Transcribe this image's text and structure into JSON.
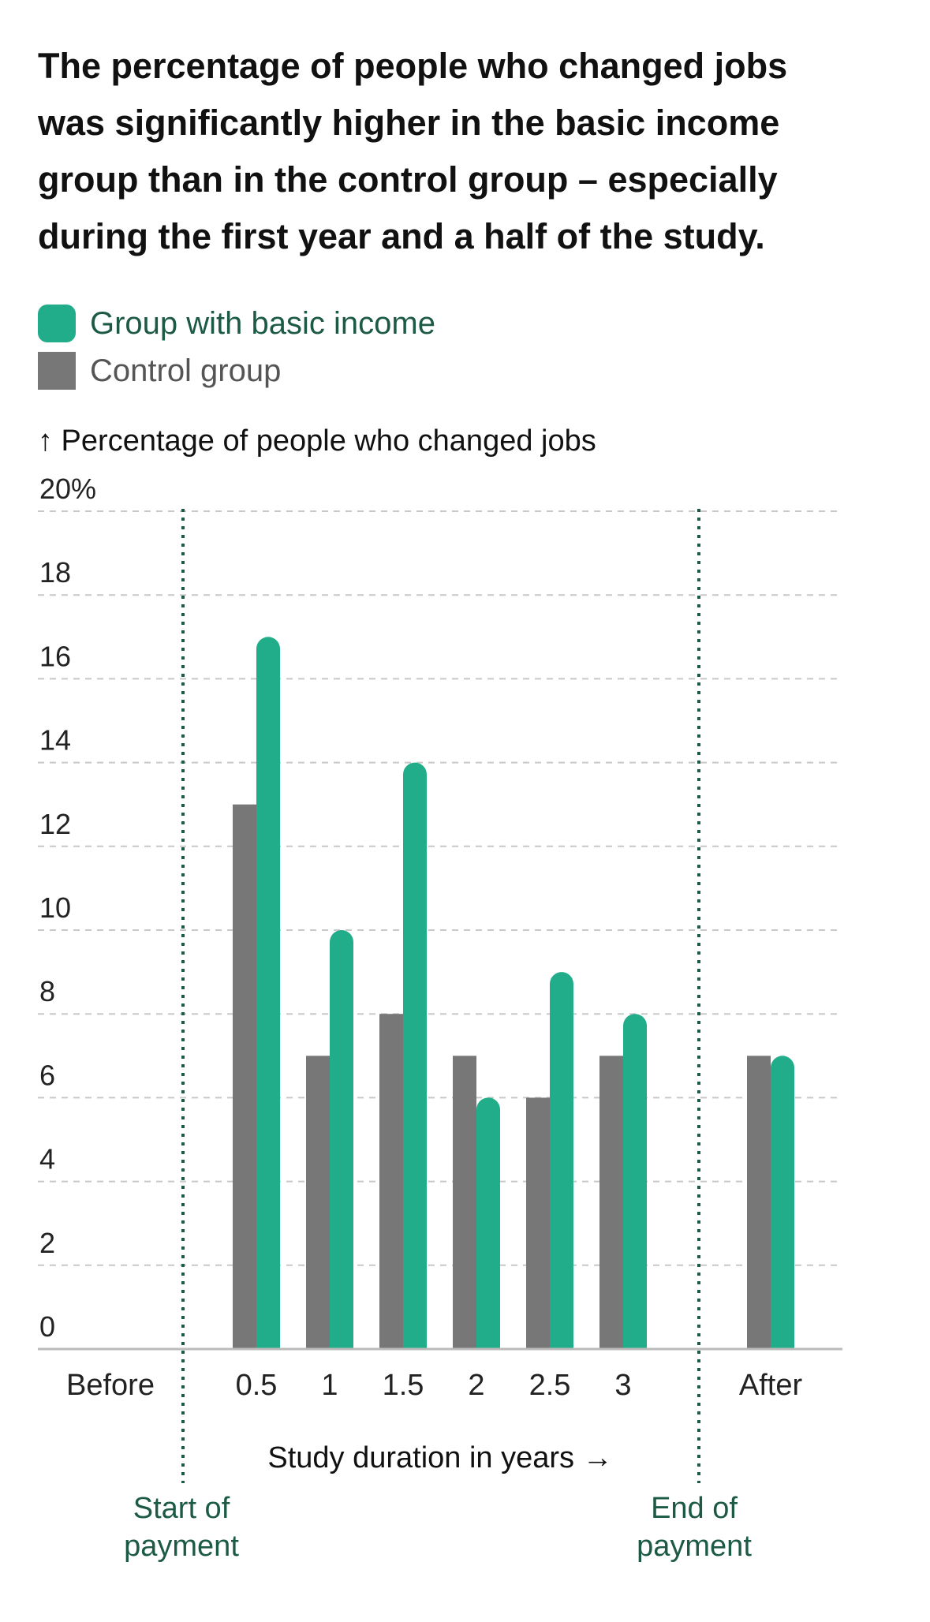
{
  "title": "The percentage of people who changed jobs was significantly higher in the basic income group than in the control group – especially during the first year and a half of the study.",
  "legend": [
    {
      "label": "Group with basic income",
      "color": "#22ad8a"
    },
    {
      "label": "Control group",
      "color": "#777777"
    }
  ],
  "annotations": {
    "start_payment": "Start of payment",
    "end_payment": "End of payment"
  },
  "chart_data": {
    "type": "bar",
    "ylabel": "↑ Percentage of people who changed jobs",
    "xlabel": "Study duration in years →",
    "ylim": [
      0,
      20
    ],
    "y_ticks": [
      "0",
      "2",
      "4",
      "6",
      "8",
      "10",
      "12",
      "14",
      "16",
      "18",
      "20%"
    ],
    "categories": [
      "Before",
      "0.5",
      "1",
      "1.5",
      "2",
      "2.5",
      "3",
      "After"
    ],
    "series": [
      {
        "name": "Control group",
        "color": "#777777",
        "values": [
          null,
          13,
          7,
          8,
          7,
          6,
          7,
          7
        ]
      },
      {
        "name": "Group with basic income",
        "color": "#22ad8a",
        "values": [
          null,
          17,
          10,
          14,
          6,
          9,
          8,
          7
        ]
      }
    ],
    "grid": true,
    "legend_position": "top-left"
  }
}
